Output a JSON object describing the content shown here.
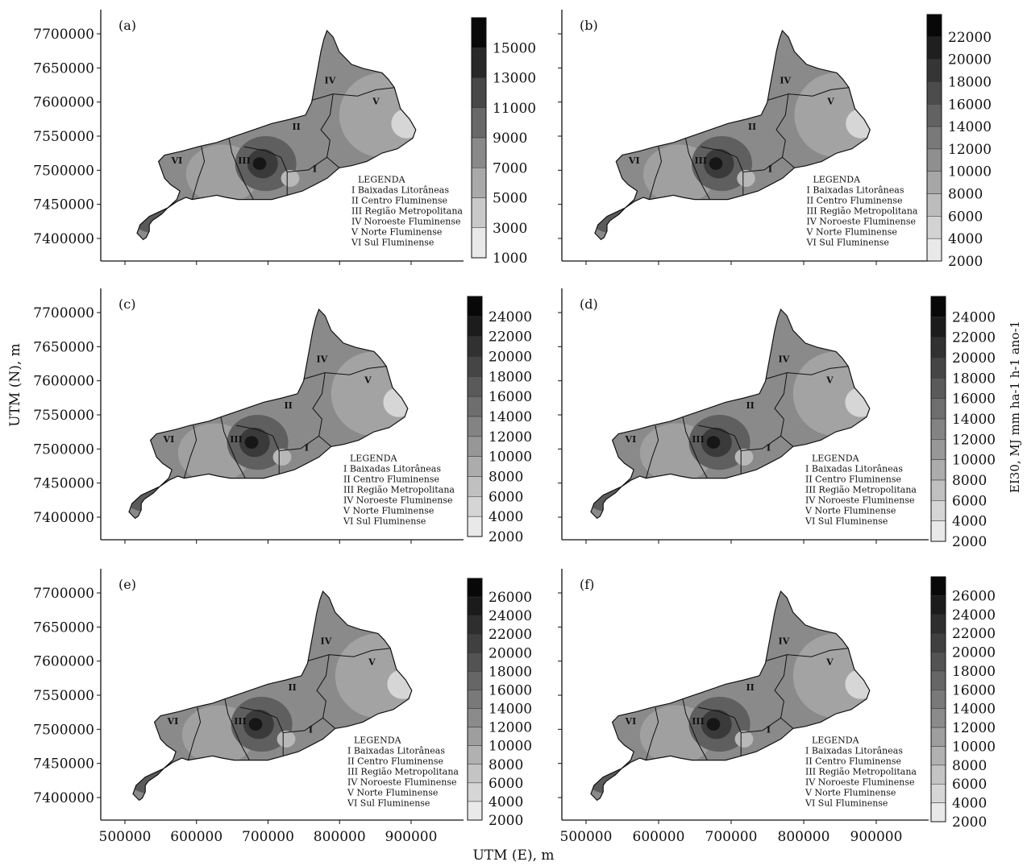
{
  "axes": {
    "x_label": "UTM (E), m",
    "y_label": "UTM (N), m",
    "colorbar_label": "EI30, MJ mm ha-1 h-1 ano-1",
    "x_ticks": [
      "500000",
      "600000",
      "700000",
      "800000",
      "900000"
    ],
    "y_ticks": [
      "7700000",
      "7650000",
      "7600000",
      "7550000",
      "7500000",
      "7450000",
      "7400000"
    ]
  },
  "legend": {
    "title": "LEGENDA",
    "items": [
      "I Baixadas Litorâneas",
      "II Centro Fluminense",
      "III Região Metropolitana",
      "IV Noroeste Fluminense",
      "V Norte Fluminense",
      "VI Sul Fluminense"
    ]
  },
  "region_labels": [
    "I",
    "II",
    "III",
    "IV",
    "V",
    "VI"
  ],
  "panels": [
    {
      "label": "(a)",
      "colorbar_ticks": [
        "15000",
        "13000",
        "11000",
        "9000",
        "7000",
        "5000",
        "3000",
        "1000"
      ]
    },
    {
      "label": "(b)",
      "colorbar_ticks": [
        "22000",
        "20000",
        "18000",
        "16000",
        "14000",
        "12000",
        "10000",
        "8000",
        "6000",
        "4000",
        "2000"
      ]
    },
    {
      "label": "(c)",
      "colorbar_ticks": [
        "24000",
        "22000",
        "20000",
        "18000",
        "16000",
        "14000",
        "12000",
        "10000",
        "8000",
        "6000",
        "4000",
        "2000"
      ]
    },
    {
      "label": "(d)",
      "colorbar_ticks": [
        "24000",
        "22000",
        "20000",
        "18000",
        "16000",
        "14000",
        "12000",
        "10000",
        "8000",
        "6000",
        "4000",
        "2000"
      ]
    },
    {
      "label": "(e)",
      "colorbar_ticks": [
        "26000",
        "24000",
        "22000",
        "20000",
        "18000",
        "16000",
        "14000",
        "12000",
        "10000",
        "8000",
        "6000",
        "4000",
        "2000"
      ]
    },
    {
      "label": "(f)",
      "colorbar_ticks": [
        "26000",
        "24000",
        "22000",
        "20000",
        "18000",
        "16000",
        "14000",
        "12000",
        "10000",
        "8000",
        "6000",
        "4000",
        "2000"
      ]
    }
  ]
}
